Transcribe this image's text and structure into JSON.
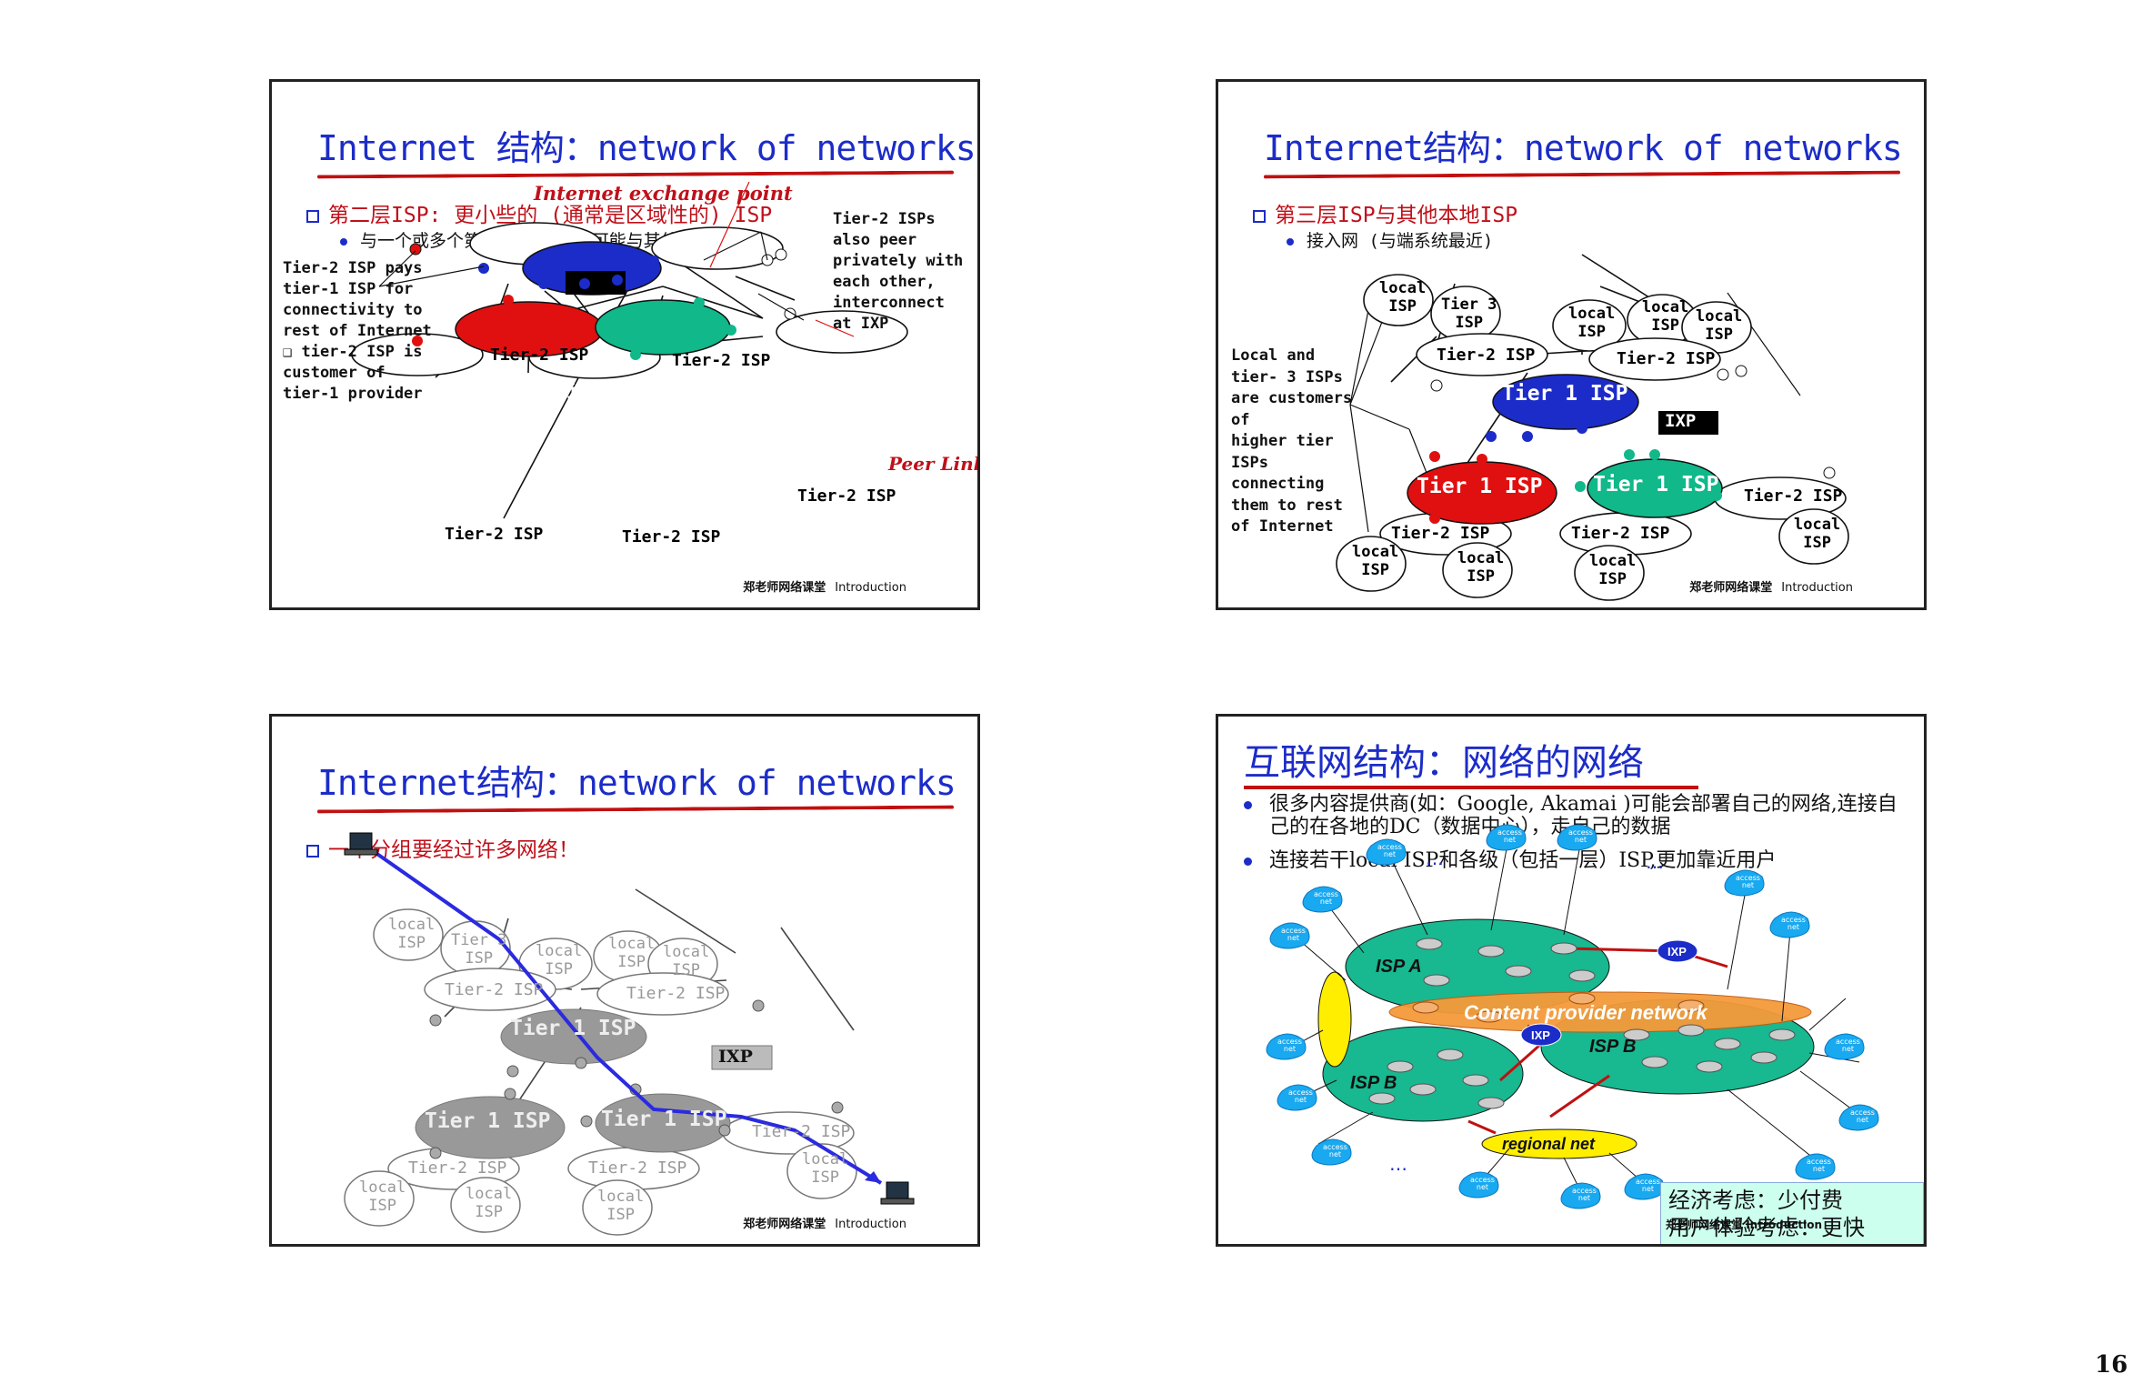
{
  "page_number": "16",
  "common": {
    "footer_cn": "郑老师网络课堂",
    "footer_en": "Introduction"
  },
  "slide1": {
    "title": "Internet 结构：network of networks",
    "bullet": "第二层ISP: 更小些的 (通常是区域性的) ISP",
    "sub_bullet": "与一个或多个第一层ISPs，也可能与其他第二层ISP",
    "callout_ixp": "Internet exchange point",
    "left_note": [
      "Tier-2 ISP pays",
      "tier-1 ISP for",
      "connectivity to",
      "rest of Internet",
      "❑ tier-2 ISP is",
      "customer of",
      "tier-1 provider"
    ],
    "right_note": [
      "Tier-2 ISPs",
      "also peer",
      "privately with",
      "each other,",
      "interconnect",
      "at IXP"
    ],
    "peer_link": "Peer Link",
    "tier1": "Tier 1 ISP",
    "tier2": "Tier-2 ISP",
    "ixp": "IXP"
  },
  "slide2": {
    "title": "Internet结构：network of networks",
    "bullet": "第三层ISP与其他本地ISP",
    "sub_bullet": "接入网 (与端系统最近)",
    "left_note": [
      "Local and",
      "tier- 3 ISPs",
      "are customers",
      "of",
      "higher tier",
      "ISPs",
      "connecting",
      "them to rest",
      "of Internet"
    ],
    "local": "local",
    "isp": "ISP",
    "tier3": "Tier 3",
    "tier1": "Tier 1 ISP",
    "tier2": "Tier-2 ISP",
    "ixp": "IXP"
  },
  "slide3": {
    "title": "Internet结构：network of networks",
    "bullet": "一个分组要经过许多网络！",
    "tier1": "Tier 1 ISP",
    "tier2": "Tier-2 ISP",
    "local": "local",
    "isp": "ISP",
    "tier3": "Tier 3",
    "ixp": "IXP"
  },
  "slide4": {
    "title": "互联网结构：网络的网络",
    "bullets": [
      "很多内容提供商(如：Google, Akamai )可能会部署自己的网络,连接自己的在各地的DC（数据中心），走自己的数据",
      "连接若干local ISP和各级（包括一层）ISP,更加靠近用户"
    ],
    "isp_a": "ISP A",
    "isp_b": "ISP B",
    "content_provider": "Content provider network",
    "ixp": "IXP",
    "regional": "regional net",
    "access": "access",
    "net": "net",
    "dots": "…",
    "econ_line1": "经济考虑：少付费",
    "econ_line2": "用户体验考虑：更快"
  },
  "colors": {
    "title_blue": "#1c2cc8",
    "tier1_blue": "#1c2cc8",
    "tier1_red": "#e01010",
    "tier1_green": "#10b88a",
    "accent_red": "#c01010",
    "content_orange": "#f59a3a",
    "isp_green": "#18b890"
  }
}
